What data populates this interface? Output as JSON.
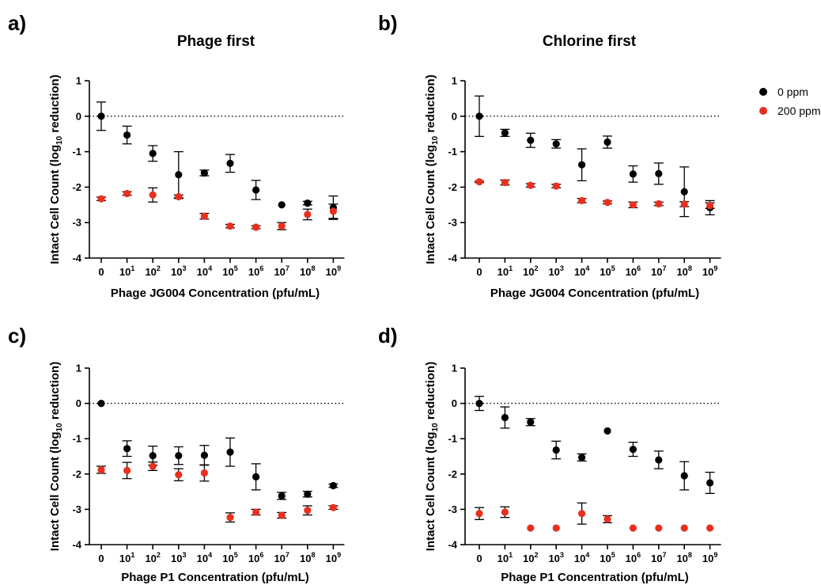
{
  "colors": {
    "zero_ppm": "#000000",
    "two_hundred_ppm": "#e8301f",
    "axis": "#000000"
  },
  "legend": {
    "position": "top-right",
    "items": [
      {
        "label": "0 ppm",
        "color": "#000000"
      },
      {
        "label": "200 ppm",
        "color": "#e8301f"
      }
    ]
  },
  "chart_data": [
    {
      "panel": "a)",
      "type": "scatter",
      "title": "Phage first",
      "xlabel": "Phage JG004 Concentration (pfu/mL)",
      "ylabel": "Intact Cell Count (log10 reduction)",
      "ylim": [
        -4,
        1
      ],
      "yticks": [
        1,
        0,
        -1,
        -2,
        -3,
        -4
      ],
      "categories": [
        "0",
        "10^1",
        "10^2",
        "10^3",
        "10^4",
        "10^5",
        "10^6",
        "10^7",
        "10^8",
        "10^9"
      ],
      "reference_line": 0,
      "series": [
        {
          "name": "0 ppm",
          "color": "#000000",
          "values": [
            0,
            -0.53,
            -1.05,
            -1.65,
            -1.6,
            -1.33,
            -2.08,
            -2.5,
            -2.45,
            -2.58
          ],
          "errors": [
            0.4,
            0.25,
            0.22,
            0.65,
            0.08,
            0.25,
            0.27,
            0,
            0.05,
            0.33
          ]
        },
        {
          "name": "200 ppm",
          "color": "#e8301f",
          "values": [
            -2.33,
            -2.18,
            -2.22,
            -2.27,
            -2.82,
            -3.1,
            -3.13,
            -3.1,
            -2.77,
            -2.68
          ],
          "errors": [
            0.05,
            0.05,
            0.2,
            0.05,
            0.08,
            0.05,
            0.04,
            0.1,
            0.15,
            0.2
          ]
        }
      ]
    },
    {
      "panel": "b)",
      "type": "scatter",
      "title": "Chlorine first",
      "xlabel": "Phage JG004 Concentration (pfu/mL)",
      "ylabel": "Intact Cell Count (log10 reduction)",
      "ylim": [
        -4,
        1
      ],
      "yticks": [
        1,
        0,
        -1,
        -2,
        -3,
        -4
      ],
      "categories": [
        "0",
        "10^1",
        "10^2",
        "10^3",
        "10^4",
        "10^5",
        "10^6",
        "10^7",
        "10^8",
        "10^9"
      ],
      "reference_line": 0,
      "series": [
        {
          "name": "0 ppm",
          "color": "#000000",
          "values": [
            0,
            -0.47,
            -0.68,
            -0.78,
            -1.37,
            -0.73,
            -1.63,
            -1.62,
            -2.13,
            -2.58
          ],
          "errors": [
            0.57,
            0.1,
            0.2,
            0.12,
            0.45,
            0.17,
            0.23,
            0.3,
            0.7,
            0.2
          ]
        },
        {
          "name": "200 ppm",
          "color": "#e8301f",
          "values": [
            -1.85,
            -1.87,
            -1.95,
            -1.97,
            -2.38,
            -2.43,
            -2.5,
            -2.47,
            -2.48,
            -2.52
          ],
          "errors": [
            0.02,
            0.07,
            0.05,
            0.05,
            0.06,
            0.04,
            0.08,
            0.05,
            0.07,
            0.08
          ]
        }
      ]
    },
    {
      "panel": "c)",
      "type": "scatter",
      "title": "",
      "xlabel": "Phage P1 Concentration (pfu/mL)",
      "ylabel": "Intact Cell Count (log10 reduction)",
      "ylim": [
        -4,
        1
      ],
      "yticks": [
        1,
        0,
        -1,
        -2,
        -3,
        -4
      ],
      "categories": [
        "0",
        "10^1",
        "10^2",
        "10^3",
        "10^4",
        "10^5",
        "10^6",
        "10^7",
        "10^8",
        "10^9"
      ],
      "reference_line": 0,
      "series": [
        {
          "name": "0 ppm",
          "color": "#000000",
          "values": [
            0,
            -1.28,
            -1.48,
            -1.48,
            -1.47,
            -1.38,
            -2.08,
            -2.62,
            -2.57,
            -2.33
          ],
          "errors": [
            0,
            0.22,
            0.27,
            0.25,
            0.28,
            0.4,
            0.37,
            0.1,
            0.08,
            0.05
          ]
        },
        {
          "name": "200 ppm",
          "color": "#e8301f",
          "values": [
            -1.88,
            -1.9,
            -1.78,
            -2.02,
            -1.97,
            -3.23,
            -3.08,
            -3.17,
            -3.03,
            -2.95
          ],
          "errors": [
            0.1,
            0.23,
            0.12,
            0.17,
            0.23,
            0.13,
            0.08,
            0.08,
            0.13,
            0.05
          ]
        }
      ]
    },
    {
      "panel": "d)",
      "type": "scatter",
      "title": "",
      "xlabel": "Phage P1 Concentration (pfu/mL)",
      "ylabel": "Intact Cell Count (log10 reduction)",
      "ylim": [
        -4,
        1
      ],
      "yticks": [
        1,
        0,
        -1,
        -2,
        -3,
        -4
      ],
      "categories": [
        "0",
        "10^1",
        "10^2",
        "10^3",
        "10^4",
        "10^5",
        "10^6",
        "10^7",
        "10^8",
        "10^9"
      ],
      "reference_line": 0,
      "series": [
        {
          "name": "0 ppm",
          "color": "#000000",
          "values": [
            0,
            -0.4,
            -0.53,
            -1.32,
            -1.53,
            -0.78,
            -1.3,
            -1.6,
            -2.05,
            -2.25
          ],
          "errors": [
            0.2,
            0.3,
            0.1,
            0.25,
            0.1,
            0,
            0.2,
            0.25,
            0.4,
            0.3
          ]
        },
        {
          "name": "200 ppm",
          "color": "#e8301f",
          "values": [
            -3.12,
            -3.08,
            -3.53,
            -3.53,
            -3.12,
            -3.28,
            -3.53,
            -3.53,
            -3.53,
            -3.53
          ],
          "errors": [
            0.17,
            0.15,
            0,
            0,
            0.3,
            0.1,
            0,
            0,
            0,
            0
          ]
        }
      ]
    }
  ]
}
